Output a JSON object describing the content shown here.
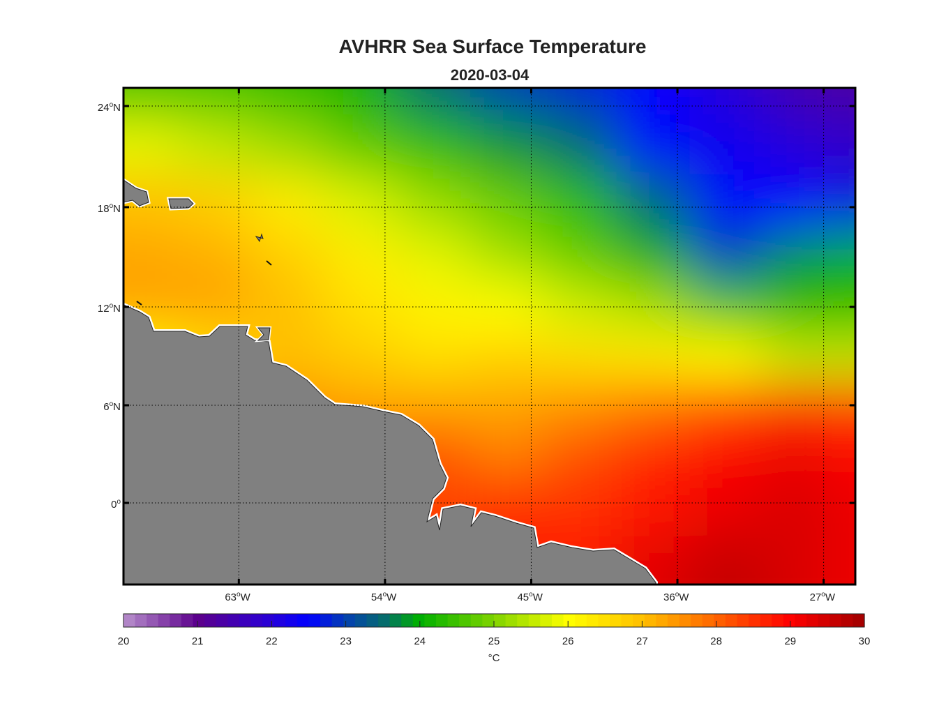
{
  "chart_data": {
    "type": "heatmap",
    "title": "AVHRR Sea Surface Temperature",
    "subtitle": "2020-03-04",
    "xlim": [
      -70.1,
      -25.05
    ],
    "ylim": [
      -5,
      25.1
    ],
    "x_ticks": [
      {
        "value": -63,
        "label": "63",
        "suffix": "W"
      },
      {
        "value": -54,
        "label": "54",
        "suffix": "W"
      },
      {
        "value": -45,
        "label": "45",
        "suffix": "W"
      },
      {
        "value": -36,
        "label": "36",
        "suffix": "W"
      },
      {
        "value": -27,
        "label": "27",
        "suffix": "W"
      }
    ],
    "y_ticks": [
      {
        "value": 24,
        "label": "24",
        "suffix": "N"
      },
      {
        "value": 18,
        "label": "18",
        "suffix": "N"
      },
      {
        "value": 12,
        "label": "12",
        "suffix": "N"
      },
      {
        "value": 6,
        "label": "6",
        "suffix": "N"
      },
      {
        "value": 0,
        "label": "0",
        "suffix": ""
      }
    ],
    "degree_symbol": "o",
    "grid": true,
    "grid_lon": [
      -69,
      -64.5,
      -60,
      -55.5,
      -51,
      -46.5,
      -42,
      -37.5,
      -33,
      -28.5,
      -25.5
    ],
    "grid_lat": [
      25,
      22,
      18,
      15,
      12,
      9,
      6,
      3,
      0,
      -4
    ],
    "sst": [
      [
        24.5,
        24.5,
        24.3,
        24.0,
        23.5,
        23.0,
        22.8,
        22.5,
        22.0,
        21.5,
        21.3
      ],
      [
        25.8,
        25.5,
        25.2,
        24.7,
        24.3,
        23.8,
        23.5,
        22.5,
        22.3,
        22.0,
        21.8
      ],
      [
        27.0,
        26.8,
        26.3,
        25.7,
        25.2,
        24.8,
        24.3,
        23.5,
        22.5,
        22.5,
        22.7
      ],
      [
        27.3,
        27.2,
        26.8,
        26.3,
        25.8,
        25.3,
        24.8,
        24.0,
        23.0,
        23.8,
        24.0
      ],
      [
        27.3,
        27.3,
        27.0,
        26.5,
        26.2,
        26.0,
        25.6,
        25.3,
        24.5,
        24.3,
        24.3
      ],
      [
        26.0,
        26.5,
        27.0,
        26.8,
        26.5,
        26.7,
        26.5,
        26.3,
        26.0,
        25.5,
        25.5
      ],
      [
        27.5,
        27.5,
        27.5,
        27.3,
        27.3,
        27.3,
        27.5,
        27.8,
        28.2,
        28.5,
        28.4
      ],
      [
        28.0,
        28.0,
        28.0,
        28.0,
        28.2,
        27.7,
        28.2,
        28.6,
        29.0,
        29.2,
        29.0
      ],
      [
        28.3,
        28.3,
        28.3,
        28.3,
        28.3,
        28.5,
        28.5,
        28.8,
        29.2,
        29.4,
        29.2
      ],
      [
        28.8,
        28.8,
        28.8,
        28.8,
        28.8,
        28.8,
        28.8,
        29.3,
        29.6,
        29.4,
        29.2
      ]
    ],
    "land_color": "#808080",
    "colorbar": {
      "min": 20,
      "max": 30,
      "ticks": [
        "20",
        "21",
        "22",
        "23",
        "24",
        "25",
        "26",
        "27",
        "28",
        "29",
        "30"
      ],
      "label": "°C",
      "stops": [
        [
          20,
          "#b890cc"
        ],
        [
          21,
          "#5c008c"
        ],
        [
          22,
          "#2800d8"
        ],
        [
          22.5,
          "#0000ff"
        ],
        [
          23,
          "#0440b0"
        ],
        [
          23.5,
          "#056a70"
        ],
        [
          24,
          "#00b000"
        ],
        [
          25,
          "#80d400"
        ],
        [
          26,
          "#ffff00"
        ],
        [
          27,
          "#ffc000"
        ],
        [
          28,
          "#ff6400"
        ],
        [
          29,
          "#ff0000"
        ],
        [
          30,
          "#a00000"
        ]
      ]
    }
  }
}
